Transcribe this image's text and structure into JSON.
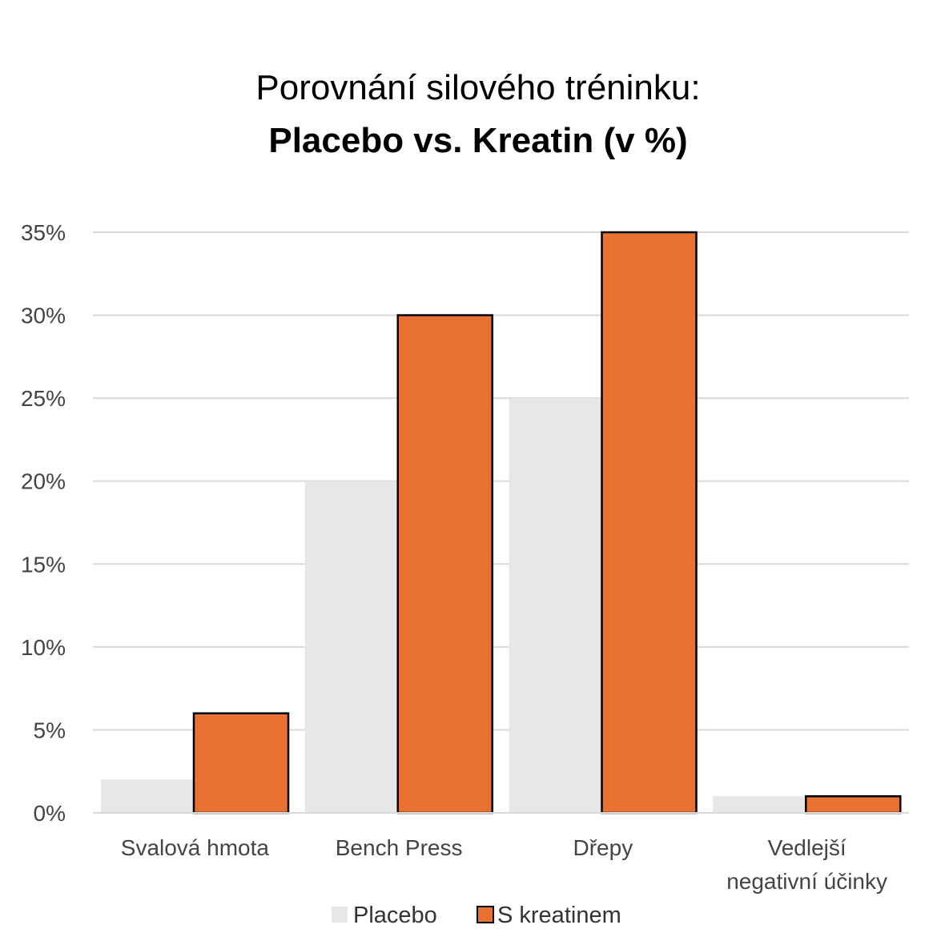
{
  "chart_data": {
    "type": "bar",
    "title_line1": "Porovnání silového tréninku:",
    "title_line2": "Placebo vs. Kreatin (v %)",
    "categories": [
      [
        "Svalová hmota"
      ],
      [
        "Bench Press"
      ],
      [
        "Dřepy"
      ],
      [
        "Vedlejší",
        "negativní účinky"
      ]
    ],
    "series": [
      {
        "name": "Placebo",
        "values": [
          2,
          20,
          25,
          1
        ],
        "color": "#e7e7e7",
        "outline": false
      },
      {
        "name": "S kreatinem",
        "values": [
          6,
          30,
          35,
          1
        ],
        "color": "#e97132",
        "outline": true
      }
    ],
    "ylim": [
      0,
      35
    ],
    "yticks": [
      "0%",
      "5%",
      "10%",
      "15%",
      "20%",
      "25%",
      "30%",
      "35%"
    ],
    "y_unit": "%",
    "grid": true,
    "legend_position": "bottom"
  }
}
